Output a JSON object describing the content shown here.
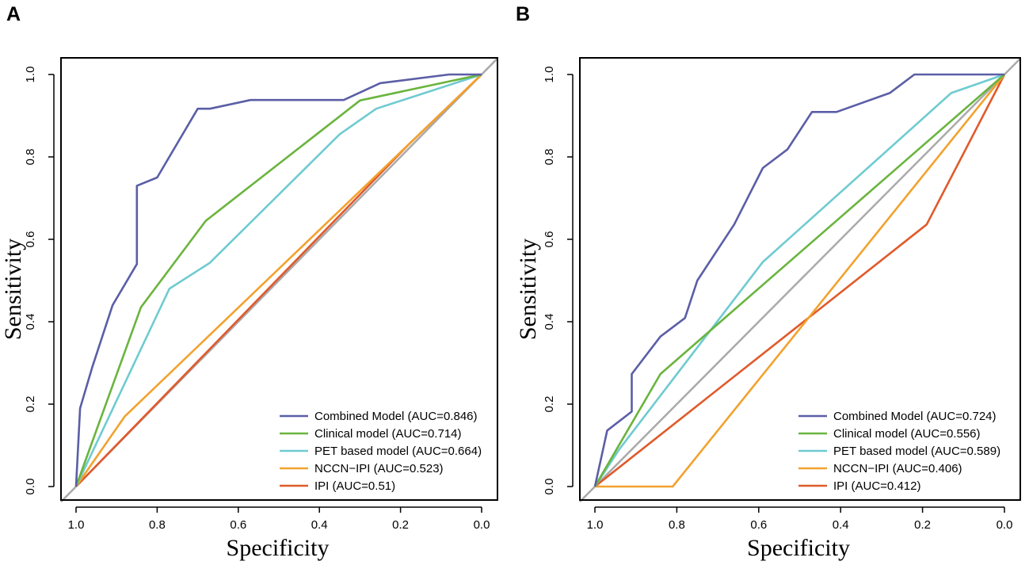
{
  "chart_data": [
    {
      "panel": "A",
      "type": "line",
      "xlabel": "Specificity",
      "ylabel": "Sensitivity",
      "xlim": [
        1.0,
        0.0
      ],
      "ylim": [
        0.0,
        1.0
      ],
      "xticks": [
        "1.0",
        "0.8",
        "0.6",
        "0.4",
        "0.2",
        "0.0"
      ],
      "yticks": [
        "0.0",
        "0.2",
        "0.4",
        "0.6",
        "0.8",
        "1.0"
      ],
      "legend_position": "bottom-right",
      "series": [
        {
          "name": "Combined Model (AUC=0.846)",
          "color": "#5b5ea6",
          "points": [
            [
              1.0,
              0.0
            ],
            [
              0.99,
              0.19
            ],
            [
              0.96,
              0.29
            ],
            [
              0.91,
              0.44
            ],
            [
              0.85,
              0.54
            ],
            [
              0.85,
              0.73
            ],
            [
              0.8,
              0.75
            ],
            [
              0.7,
              0.917
            ],
            [
              0.67,
              0.917
            ],
            [
              0.57,
              0.938
            ],
            [
              0.34,
              0.938
            ],
            [
              0.25,
              0.979
            ],
            [
              0.08,
              1.0
            ],
            [
              0.0,
              1.0
            ]
          ]
        },
        {
          "name": "Clinical model (AUC=0.714)",
          "color": "#6ab43e",
          "points": [
            [
              1.0,
              0.0
            ],
            [
              0.84,
              0.435
            ],
            [
              0.68,
              0.645
            ],
            [
              0.3,
              0.937
            ],
            [
              0.0,
              1.0
            ]
          ]
        },
        {
          "name": "PET based model (AUC=0.664)",
          "color": "#6fcbd1",
          "points": [
            [
              1.0,
              0.0
            ],
            [
              0.77,
              0.48
            ],
            [
              0.67,
              0.543
            ],
            [
              0.35,
              0.855
            ],
            [
              0.26,
              0.917
            ],
            [
              0.0,
              1.0
            ]
          ]
        },
        {
          "name": "NCCN−IPI (AUC=0.523)",
          "color": "#f2a22e",
          "points": [
            [
              1.0,
              0.0
            ],
            [
              0.88,
              0.17
            ],
            [
              0.0,
              1.0
            ]
          ]
        },
        {
          "name": "IPI (AUC=0.51)",
          "color": "#e05a2b",
          "points": [
            [
              1.0,
              0.0
            ],
            [
              0.18,
              0.83
            ],
            [
              0.0,
              1.0
            ]
          ]
        }
      ]
    },
    {
      "panel": "B",
      "type": "line",
      "xlabel": "Specificity",
      "ylabel": "Sensitivity",
      "xlim": [
        1.0,
        0.0
      ],
      "ylim": [
        0.0,
        1.0
      ],
      "xticks": [
        "1.0",
        "0.8",
        "0.6",
        "0.4",
        "0.2",
        "0.0"
      ],
      "yticks": [
        "0.0",
        "0.2",
        "0.4",
        "0.6",
        "0.8",
        "1.0"
      ],
      "legend_position": "bottom-right",
      "series": [
        {
          "name": "Combined Model (AUC=0.724)",
          "color": "#5b5ea6",
          "points": [
            [
              1.0,
              0.0
            ],
            [
              0.97,
              0.136
            ],
            [
              0.91,
              0.182
            ],
            [
              0.91,
              0.273
            ],
            [
              0.84,
              0.364
            ],
            [
              0.78,
              0.409
            ],
            [
              0.75,
              0.5
            ],
            [
              0.66,
              0.636
            ],
            [
              0.59,
              0.773
            ],
            [
              0.53,
              0.818
            ],
            [
              0.47,
              0.909
            ],
            [
              0.41,
              0.909
            ],
            [
              0.28,
              0.955
            ],
            [
              0.22,
              1.0
            ],
            [
              0.0,
              1.0
            ]
          ]
        },
        {
          "name": "Clinical model (AUC=0.556)",
          "color": "#6ab43e",
          "points": [
            [
              1.0,
              0.0
            ],
            [
              0.84,
              0.273
            ],
            [
              0.0,
              1.0
            ]
          ]
        },
        {
          "name": "PET based model (AUC=0.589)",
          "color": "#6fcbd1",
          "points": [
            [
              1.0,
              0.0
            ],
            [
              0.94,
              0.091
            ],
            [
              0.59,
              0.545
            ],
            [
              0.13,
              0.955
            ],
            [
              0.0,
              1.0
            ]
          ]
        },
        {
          "name": "NCCN−IPI (AUC=0.406)",
          "color": "#f2a22e",
          "points": [
            [
              1.0,
              0.0
            ],
            [
              0.81,
              0.0
            ],
            [
              0.0,
              1.0
            ]
          ]
        },
        {
          "name": "IPI (AUC=0.412)",
          "color": "#e05a2b",
          "points": [
            [
              1.0,
              0.0
            ],
            [
              0.19,
              0.636
            ],
            [
              0.0,
              1.0
            ]
          ]
        }
      ]
    }
  ],
  "reference_line_color": "#aaaaaa"
}
